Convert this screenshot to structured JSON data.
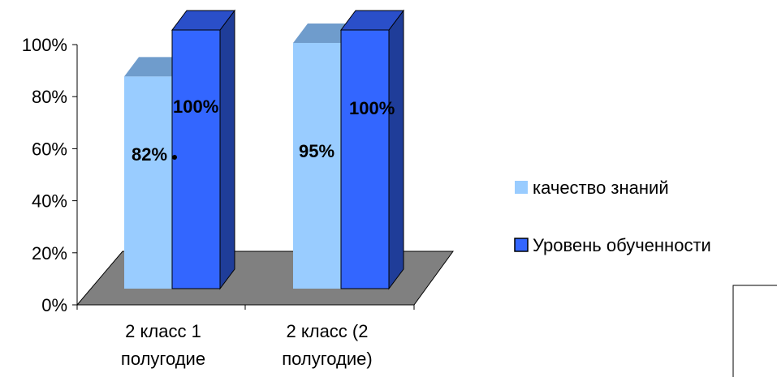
{
  "chart_data": {
    "type": "bar",
    "categories": [
      "2 класс 1 полугодие",
      "2 класс (2 полугодие)"
    ],
    "category_lines": [
      [
        "2 класс 1",
        "полугодие"
      ],
      [
        "2 класс (2",
        "полугодие)"
      ]
    ],
    "series": [
      {
        "name": "качество знаний",
        "values": [
          82,
          95
        ],
        "labels": [
          "82%",
          "95%"
        ],
        "color": "#99ccff",
        "top_color": "#6f9ccc",
        "side_color": "#7aa6d6"
      },
      {
        "name": "Уровень обученности",
        "values": [
          100,
          100
        ],
        "labels": [
          "100%",
          "100%"
        ],
        "color": "#3366ff",
        "top_color": "#2a4fc9",
        "side_color": "#1f3d99"
      }
    ],
    "y_ticks": [
      "0%",
      "20%",
      "40%",
      "60%",
      "80%",
      "100%"
    ],
    "ylim": [
      0,
      100
    ],
    "title": "",
    "xlabel": "",
    "ylabel": "",
    "grid": false,
    "legend_position": "right",
    "floor_color": "#808080",
    "three_d": true
  }
}
